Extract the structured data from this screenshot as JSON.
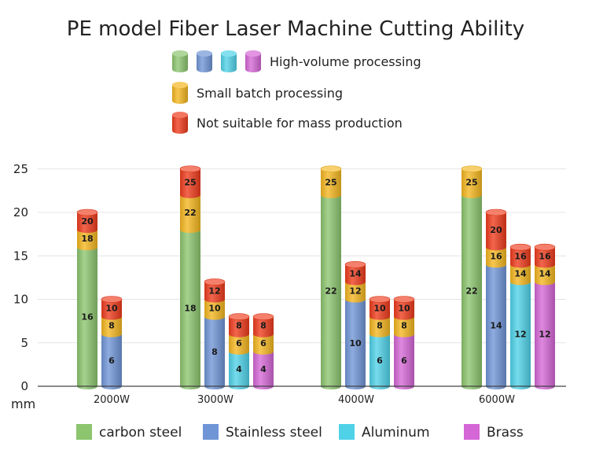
{
  "chart_data": {
    "type": "bar",
    "title": "PE model Fiber Laser Machine Cutting Ability",
    "ylabel": "mm",
    "ylim": [
      0,
      25
    ],
    "yticks": [
      0,
      5,
      10,
      15,
      20,
      25
    ],
    "categories": [
      "2000W",
      "3000W",
      "4000W",
      "6000W"
    ],
    "materials": [
      {
        "key": "carbon",
        "name": "carbon steel"
      },
      {
        "key": "stainless",
        "name": "Stainless steel"
      },
      {
        "key": "aluminum",
        "name": "Aluminum"
      },
      {
        "key": "brass",
        "name": "Brass"
      }
    ],
    "capability_legend": [
      {
        "key": "high",
        "label": "High-volume processing"
      },
      {
        "key": "small",
        "label": "Small batch processing"
      },
      {
        "key": "not",
        "label": "Not suitable for mass production"
      }
    ],
    "groups": [
      {
        "category": "2000W",
        "bars": [
          {
            "material": "carbon",
            "high": 16,
            "small": 18,
            "not": 20
          },
          {
            "material": "stainless",
            "high": 6,
            "small": 8,
            "not": 10
          }
        ]
      },
      {
        "category": "3000W",
        "bars": [
          {
            "material": "carbon",
            "high": 18,
            "small": 22,
            "not": 25
          },
          {
            "material": "stainless",
            "high": 8,
            "small": 10,
            "not": 12
          },
          {
            "material": "aluminum",
            "high": 4,
            "small": 6,
            "not": 8
          },
          {
            "material": "brass",
            "high": 4,
            "small": 6,
            "not": 8
          }
        ]
      },
      {
        "category": "4000W",
        "bars": [
          {
            "material": "carbon",
            "high": 22,
            "small": 25,
            "not": null
          },
          {
            "material": "stainless",
            "high": 10,
            "small": 12,
            "not": 14
          },
          {
            "material": "aluminum",
            "high": 6,
            "small": 8,
            "not": 10
          },
          {
            "material": "brass",
            "high": 6,
            "small": 8,
            "not": 10
          }
        ]
      },
      {
        "category": "6000W",
        "bars": [
          {
            "material": "carbon",
            "high": 22,
            "small": 25,
            "not": null
          },
          {
            "material": "stainless",
            "high": 14,
            "small": 16,
            "not": 20
          },
          {
            "material": "aluminum",
            "high": 12,
            "small": 14,
            "not": 16
          },
          {
            "material": "brass",
            "high": 12,
            "small": 14,
            "not": 16
          }
        ]
      }
    ]
  },
  "colors": {
    "carbon": "#8cc56e",
    "stainless": "#6f95d6",
    "aluminum": "#4fd2e8",
    "brass": "#d566d6",
    "small": "#f3b61f",
    "not": "#ee3b1c",
    "axis": "#444444",
    "grid": "#e4e4e4"
  }
}
